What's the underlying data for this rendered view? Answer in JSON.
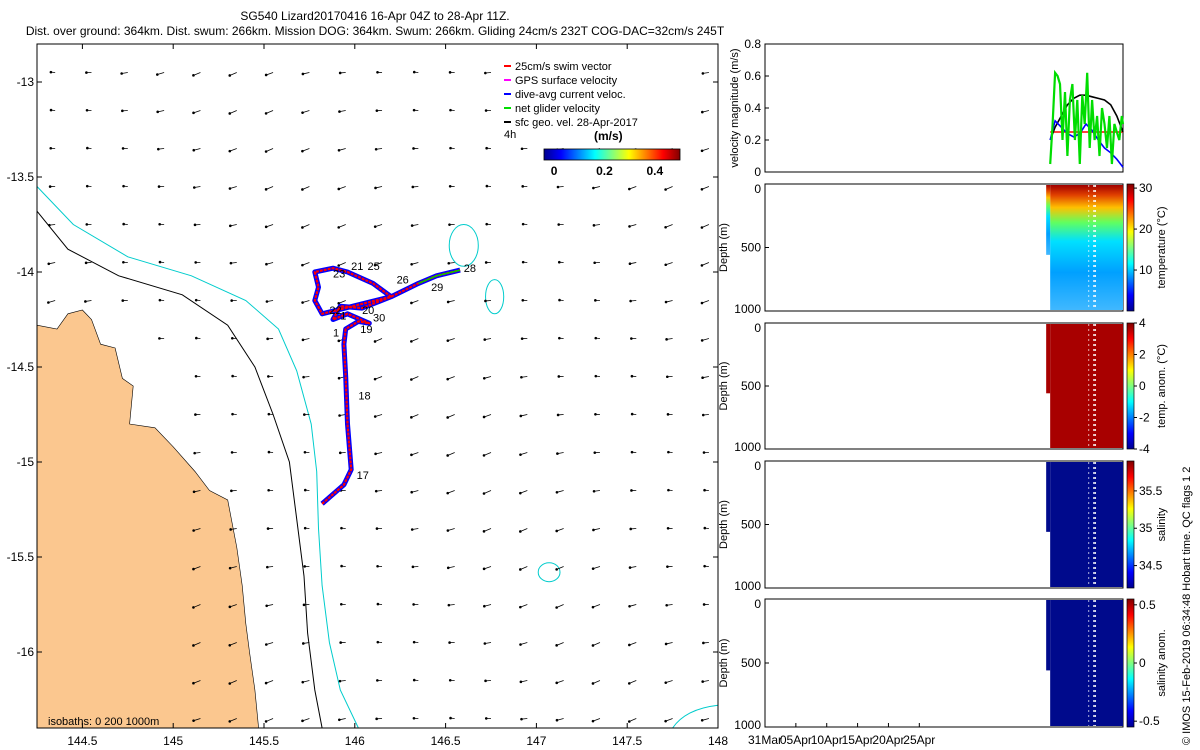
{
  "header": {
    "title": "SG540 Lizard20170416 16-Apr 04Z to 28-Apr 11Z.",
    "subtitle": "Dist. over ground: 364km. Dist. swum: 266km. Mission DOG: 364km. Swum: 266km. Gliding 24cm/s 232T COG-DAC=32cm/s 245T"
  },
  "legend": {
    "items": [
      {
        "label": "25cm/s swim vector",
        "color": "#ff0000"
      },
      {
        "label": "GPS surface velocity",
        "color": "#ff00ff"
      },
      {
        "label": "dive-avg current veloc.",
        "color": "#0000ff"
      },
      {
        "label": "net glider velocity",
        "color": "#00dd00"
      },
      {
        "label": "sfc geo. vel. 28-Apr-2017",
        "color": "#000000"
      }
    ],
    "interval_label": "4h",
    "colorbar_title": "(m/s)",
    "colorbar_ticks": [
      "0",
      "0.2",
      "0.4"
    ]
  },
  "isobath_note": "isobaths: 0   200  1000m",
  "credit": "© IMOS 15-Feb-2019 06:34:48 Hobart time. QC flags 1  2",
  "colors": {
    "land": "#fbc78f",
    "contour_200": "#00cccc",
    "contour_1000": "#000000"
  },
  "chart_data": [
    {
      "type": "scatter",
      "name": "map",
      "xticks": [
        "144.5",
        "145",
        "145.5",
        "146",
        "146.5",
        "147",
        "147.5",
        "148"
      ],
      "yticks": [
        "-13",
        "-13.5",
        "-14",
        "-14.5",
        "-15",
        "-15.5",
        "-16"
      ],
      "xlim": [
        144.25,
        148.0
      ],
      "ylim": [
        -16.4,
        -12.8
      ],
      "track": [
        [
          145.82,
          -15.22
        ],
        [
          145.94,
          -15.12
        ],
        [
          145.98,
          -15.04
        ],
        [
          145.96,
          -14.8
        ],
        [
          145.95,
          -14.55
        ],
        [
          145.94,
          -14.38
        ],
        [
          145.95,
          -14.3
        ],
        [
          146.02,
          -14.26
        ],
        [
          146.08,
          -14.27
        ],
        [
          145.96,
          -14.22
        ],
        [
          145.88,
          -14.25
        ],
        [
          145.92,
          -14.18
        ],
        [
          146.04,
          -14.19
        ],
        [
          146.2,
          -14.13
        ],
        [
          146.1,
          -14.06
        ],
        [
          145.96,
          -14.0
        ],
        [
          145.88,
          -13.98
        ],
        [
          145.78,
          -14.0
        ],
        [
          145.8,
          -14.08
        ],
        [
          145.78,
          -14.15
        ],
        [
          145.82,
          -14.22
        ],
        [
          146.2,
          -14.13
        ],
        [
          146.35,
          -14.06
        ],
        [
          146.45,
          -14.02
        ],
        [
          146.58,
          -13.99
        ]
      ],
      "day_labels": [
        {
          "text": "17",
          "lon": 146.01,
          "lat": -15.09
        },
        {
          "text": "18",
          "lon": 146.02,
          "lat": -14.67
        },
        {
          "text": "1",
          "lon": 145.88,
          "lat": -14.34
        },
        {
          "text": "19",
          "lon": 146.03,
          "lat": -14.32
        },
        {
          "text": "30",
          "lon": 146.1,
          "lat": -14.26
        },
        {
          "text": "20",
          "lon": 146.04,
          "lat": -14.22
        },
        {
          "text": "1",
          "lon": 145.92,
          "lat": -14.25
        },
        {
          "text": "22",
          "lon": 145.86,
          "lat": -14.22
        },
        {
          "text": "23",
          "lon": 145.88,
          "lat": -14.03
        },
        {
          "text": "21",
          "lon": 145.98,
          "lat": -13.99
        },
        {
          "text": "25",
          "lon": 146.07,
          "lat": -13.99
        },
        {
          "text": "26",
          "lon": 146.23,
          "lat": -14.06
        },
        {
          "text": "29",
          "lon": 146.42,
          "lat": -14.1
        },
        {
          "text": "28",
          "lon": 146.6,
          "lat": -14.0
        }
      ]
    },
    {
      "type": "line",
      "name": "velocity",
      "ylabel": "velocity magnitude (m/s)",
      "yticks": [
        "0",
        "0.2",
        "0.4",
        "0.6",
        "0.8"
      ],
      "ylim": [
        0,
        0.8
      ],
      "xlim": [
        0,
        58
      ],
      "series": [
        {
          "color": "#ff0000",
          "x": [
            46.2,
            58
          ],
          "y": [
            0.25,
            0.25
          ]
        },
        {
          "color": "#000000",
          "x": [
            46.2,
            47,
            48,
            49,
            50,
            51,
            52,
            53,
            54,
            55,
            56,
            57,
            58
          ],
          "y": [
            0.2,
            0.28,
            0.35,
            0.42,
            0.46,
            0.48,
            0.48,
            0.47,
            0.46,
            0.45,
            0.42,
            0.35,
            0.25
          ]
        },
        {
          "color": "#0000ff",
          "x": [
            46.2,
            47,
            48,
            49,
            50,
            51,
            52,
            53,
            54,
            55,
            56,
            57,
            58
          ],
          "y": [
            0.2,
            0.32,
            0.28,
            0.24,
            0.22,
            0.24,
            0.3,
            0.26,
            0.2,
            0.15,
            0.12,
            0.08,
            0.03
          ]
        },
        {
          "color": "#00dd00",
          "x": [
            46.2,
            46.6,
            47,
            47.4,
            47.8,
            48.2,
            48.6,
            49,
            49.4,
            49.8,
            50.2,
            50.6,
            51,
            51.4,
            51.8,
            52.2,
            52.6,
            53,
            53.4,
            53.8,
            54.2,
            54.6,
            55,
            55.4,
            55.8,
            56.2,
            56.6,
            57,
            57.4,
            57.8,
            58
          ],
          "y": [
            0.05,
            0.3,
            0.62,
            0.6,
            0.55,
            0.2,
            0.5,
            0.1,
            0.45,
            0.55,
            0.2,
            0.45,
            0.05,
            0.48,
            0.3,
            0.62,
            0.15,
            0.45,
            0.2,
            0.35,
            0.1,
            0.4,
            0.3,
            0.15,
            0.35,
            0.05,
            0.3,
            0.25,
            0.2,
            0.35,
            0.3
          ]
        }
      ]
    },
    {
      "type": "heatmap",
      "name": "temperature",
      "ylabel": "Depth (m)",
      "yticks": [
        "0",
        "500",
        "1000"
      ],
      "cbar_label": "temperature (°C)",
      "cbar_ticks": [
        "10",
        "20",
        "30"
      ],
      "cbar_range": [
        0,
        31
      ],
      "scheme": "temp",
      "xlim": [
        0,
        58
      ],
      "data_x": [
        46.2,
        58
      ]
    },
    {
      "type": "heatmap",
      "name": "temp_anom",
      "ylabel": "Depth (m)",
      "yticks": [
        "0",
        "500",
        "1000"
      ],
      "cbar_label": "temp. anom. (°C)",
      "cbar_ticks": [
        "-4",
        "-2",
        "0",
        "2",
        "4"
      ],
      "cbar_range": [
        -4,
        4
      ],
      "scheme": "uniform_high",
      "xlim": [
        0,
        58
      ],
      "data_x": [
        46.2,
        58
      ]
    },
    {
      "type": "heatmap",
      "name": "salinity",
      "ylabel": "Depth (m)",
      "yticks": [
        "0",
        "500",
        "1000"
      ],
      "cbar_label": "salinity",
      "cbar_ticks": [
        "34.5",
        "35",
        "35.5"
      ],
      "cbar_range": [
        34.2,
        35.9
      ],
      "scheme": "uniform_low",
      "xlim": [
        0,
        58
      ],
      "data_x": [
        46.2,
        58
      ]
    },
    {
      "type": "heatmap",
      "name": "sal_anom",
      "ylabel": "Depth (m)",
      "yticks": [
        "0",
        "500",
        "1000"
      ],
      "cbar_label": "salinity anom.",
      "cbar_ticks": [
        "-0.5",
        "0",
        "0.5"
      ],
      "cbar_range": [
        -0.55,
        0.55
      ],
      "scheme": "uniform_low",
      "xlim": [
        0,
        58
      ],
      "data_x": [
        46.2,
        58
      ]
    },
    {
      "type": "axis",
      "name": "time",
      "ticks": [
        {
          "label": "31Mar",
          "x": 0
        },
        {
          "label": "05Apr",
          "x": 5
        },
        {
          "label": "10Apr",
          "x": 10
        },
        {
          "label": "15Apr",
          "x": 15
        },
        {
          "label": "20Apr",
          "x": 20
        },
        {
          "label": "25Apr",
          "x": 25
        }
      ]
    }
  ]
}
